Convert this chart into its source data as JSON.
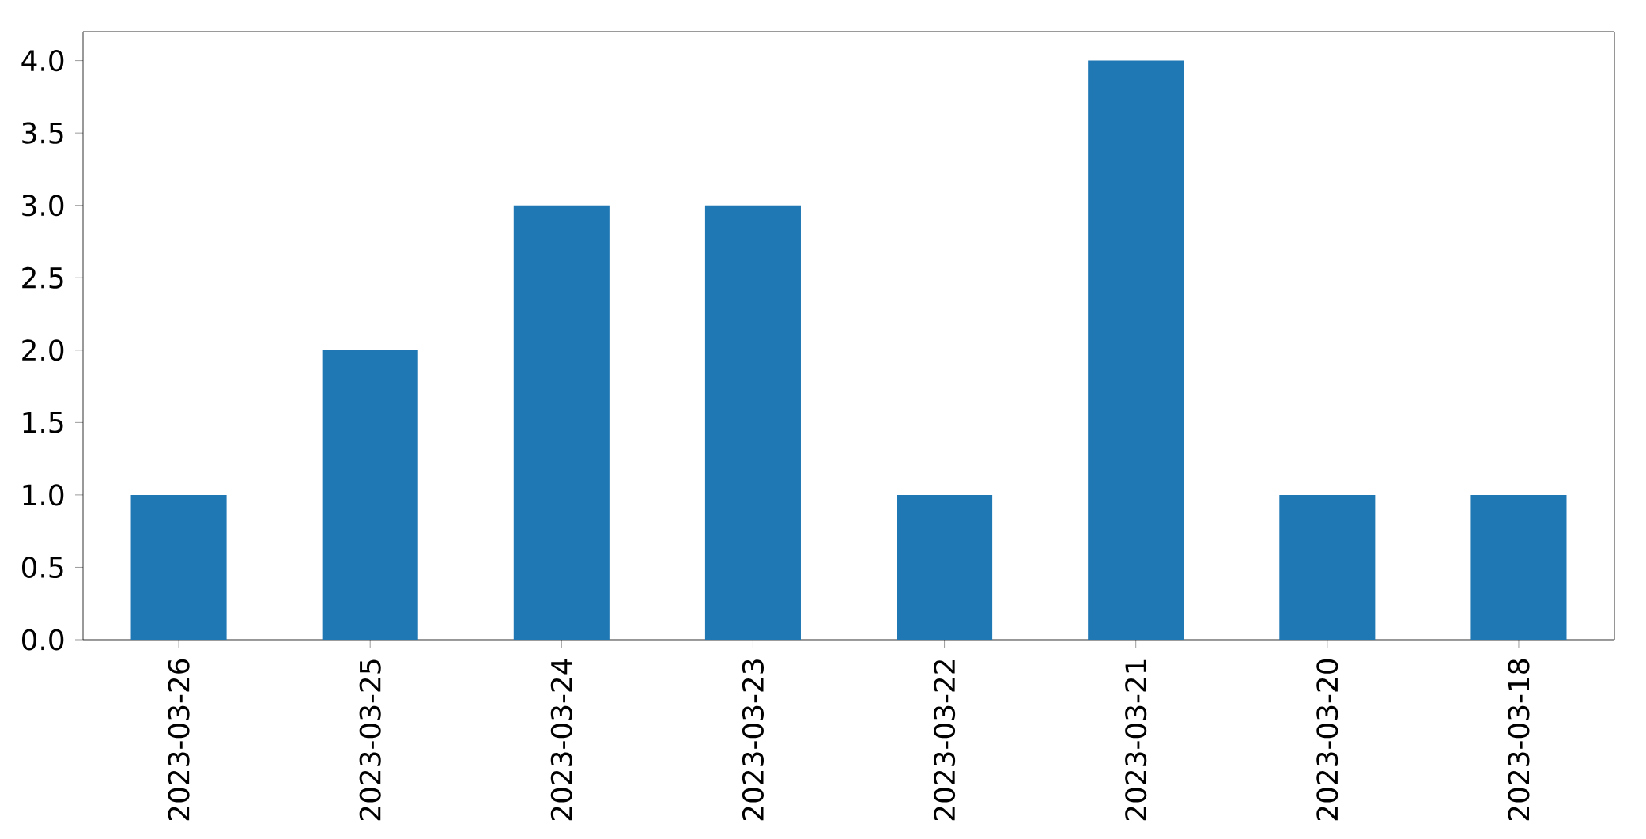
{
  "chart_data": {
    "type": "bar",
    "categories": [
      "2023-03-26",
      "2023-03-25",
      "2023-03-24",
      "2023-03-23",
      "2023-03-22",
      "2023-03-21",
      "2023-03-20",
      "2023-03-18"
    ],
    "values": [
      1,
      2,
      3,
      3,
      1,
      4,
      1,
      1
    ],
    "color": "#1f77b4",
    "ylim": [
      0,
      4.2
    ],
    "yticks": [
      {
        "value": 0,
        "label": "0.0"
      },
      {
        "value": 0.5,
        "label": "0.5"
      },
      {
        "value": 1,
        "label": "1.0"
      },
      {
        "value": 1.5,
        "label": "1.5"
      },
      {
        "value": 2,
        "label": "2.0"
      },
      {
        "value": 2.5,
        "label": "2.5"
      },
      {
        "value": 3,
        "label": "3.0"
      },
      {
        "value": 3.5,
        "label": "3.5"
      },
      {
        "value": 4,
        "label": "4.0"
      }
    ],
    "grid": false
  }
}
